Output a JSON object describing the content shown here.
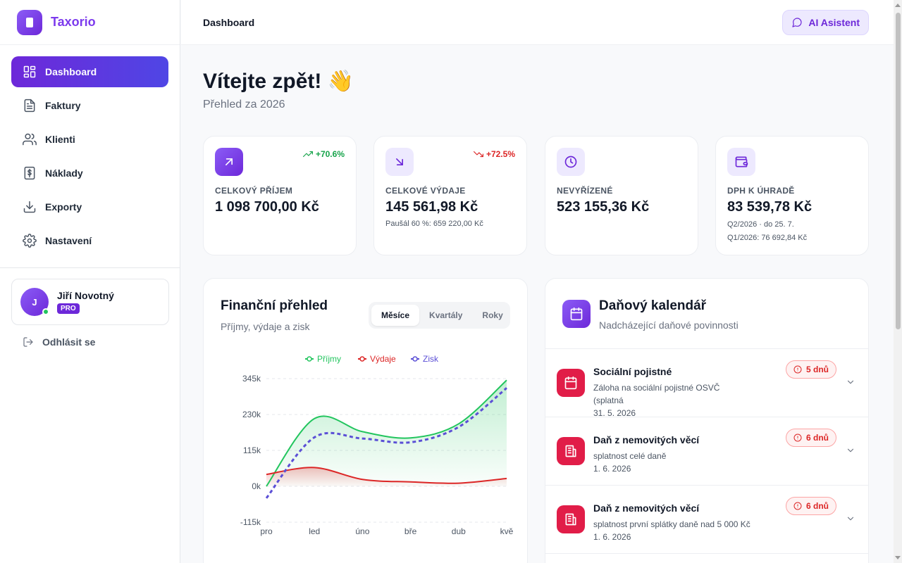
{
  "brand": {
    "name": "Taxorio"
  },
  "nav": [
    {
      "label": "Dashboard",
      "icon": "dashboard-icon",
      "active": true
    },
    {
      "label": "Faktury",
      "icon": "invoice-icon"
    },
    {
      "label": "Klienti",
      "icon": "users-icon"
    },
    {
      "label": "Náklady",
      "icon": "receipt-icon"
    },
    {
      "label": "Exporty",
      "icon": "download-icon"
    },
    {
      "label": "Nastavení",
      "icon": "gear-icon"
    }
  ],
  "user": {
    "initial": "J",
    "name": "Jiří Novotný",
    "badge": "PRO",
    "online": true
  },
  "logout": {
    "label": "Odhlásit se"
  },
  "topbar": {
    "title": "Dashboard",
    "ai_button": "AI Asistent"
  },
  "welcome": {
    "title": "Vítejte zpět! 👋",
    "subtitle": "Přehled za 2026"
  },
  "stats": [
    {
      "label": "CELKOVÝ PŘÍJEM",
      "value": "1 098 700,00 Kč",
      "change": "+70.6%",
      "trend": "up",
      "icon": "arrow-up-right-icon",
      "notes": []
    },
    {
      "label": "CELKOVÉ VÝDAJE",
      "value": "145 561,98 Kč",
      "change": "+72.5%",
      "trend": "down",
      "icon": "arrow-down-right-icon",
      "notes": [
        "Paušál 60 %: 659 220,00 Kč"
      ]
    },
    {
      "label": "NEVYŘÍZENÉ",
      "value": "523 155,36 Kč",
      "change": "",
      "icon": "clock-icon",
      "notes": []
    },
    {
      "label": "DPH K ÚHRADĚ",
      "value": "83 539,78 Kč",
      "change": "",
      "icon": "wallet-icon",
      "notes": [
        "Q2/2026 · do 25. 7.",
        "Q1/2026: 76 692,84 Kč"
      ]
    }
  ],
  "finance": {
    "title": "Finanční přehled",
    "subtitle": "Příjmy, výdaje a zisk",
    "tabs": [
      "Měsíce",
      "Kvartály",
      "Roky"
    ],
    "active_tab": "Měsíce"
  },
  "chart_data": {
    "type": "area",
    "title": "",
    "xlabel": "",
    "ylabel": "",
    "categories": [
      "pro",
      "led",
      "úno",
      "bře",
      "dub",
      "kvě"
    ],
    "ylim": [
      -115000,
      345000
    ],
    "yticks": [
      "345k",
      "230k",
      "115k",
      "0k",
      "-115k"
    ],
    "ytick_values": [
      345000,
      230000,
      115000,
      0,
      -115000
    ],
    "legend": "top",
    "grid": true,
    "series": [
      {
        "name": "Příjmy",
        "values": [
          0,
          217000,
          175000,
          155000,
          200000,
          340000
        ],
        "color": "#22c55e",
        "style": "solid",
        "fill": true
      },
      {
        "name": "Výdaje",
        "values": [
          38000,
          60000,
          22000,
          14000,
          10000,
          25000
        ],
        "color": "#dc2626",
        "style": "solid",
        "fill": true
      },
      {
        "name": "Zisk",
        "values": [
          -38000,
          157000,
          153000,
          141000,
          190000,
          315000
        ],
        "color": "#5b4fd6",
        "style": "dashed",
        "fill": false
      }
    ]
  },
  "calendar": {
    "title": "Daňový kalendář",
    "subtitle": "Nadcházející daňové povinnosti",
    "items": [
      {
        "title": "Sociální pojistné",
        "desc": "Záloha na sociální pojistné OSVČ (splatná",
        "date": "31. 5. 2026",
        "badge": "5 dnů",
        "icon": "calendar-icon"
      },
      {
        "title": "Daň z nemovitých věcí",
        "desc": "splatnost celé daně",
        "date": "1. 6. 2026",
        "badge": "6 dnů",
        "icon": "building-icon"
      },
      {
        "title": "Daň z nemovitých věcí",
        "desc": "splatnost první splátky daně nad 5 000 Kč",
        "date": "1. 6. 2026",
        "badge": "6 dnů",
        "icon": "building-icon"
      }
    ]
  }
}
